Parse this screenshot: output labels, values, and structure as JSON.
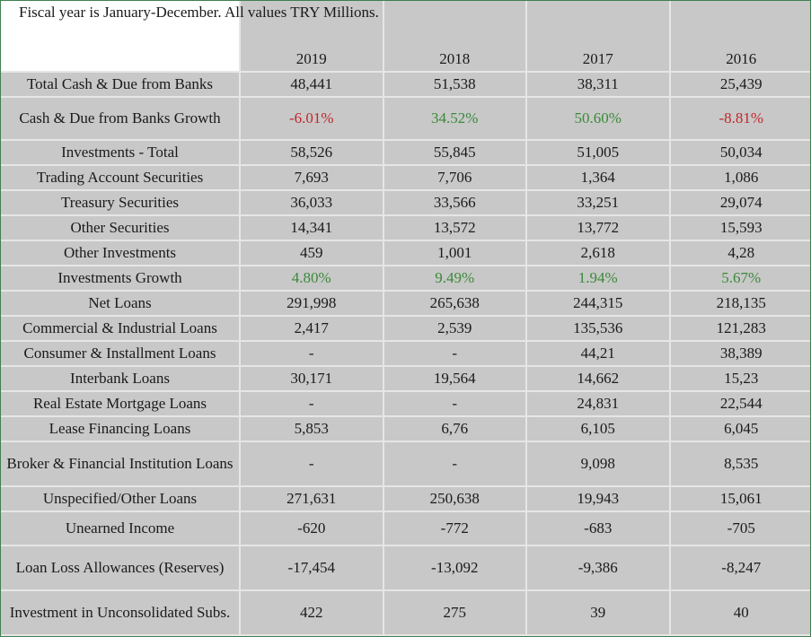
{
  "header": {
    "caption": "Fiscal year is January-December. All values TRY Millions.",
    "years": [
      "2019",
      "2018",
      "2017",
      "2016"
    ]
  },
  "rows": [
    {
      "label": "Total Cash & Due from Banks",
      "values": [
        "48,441",
        "51,538",
        "38,311",
        "25,439"
      ]
    },
    {
      "label": "Cash & Due from Banks Growth",
      "values": [
        "-6.01%",
        "34.52%",
        "50.60%",
        "-8.81%"
      ]
    },
    {
      "label": "Investments - Total",
      "values": [
        "58,526",
        "55,845",
        "51,005",
        "50,034"
      ]
    },
    {
      "label": "Trading Account Securities",
      "values": [
        "7,693",
        "7,706",
        "1,364",
        "1,086"
      ]
    },
    {
      "label": "Treasury Securities",
      "values": [
        "36,033",
        "33,566",
        "33,251",
        "29,074"
      ]
    },
    {
      "label": "Other Securities",
      "values": [
        "14,341",
        "13,572",
        "13,772",
        "15,593"
      ]
    },
    {
      "label": "Other Investments",
      "values": [
        "459",
        "1,001",
        "2,618",
        "4,28"
      ]
    },
    {
      "label": "Investments Growth",
      "values": [
        "4.80%",
        "9.49%",
        "1.94%",
        "5.67%"
      ]
    },
    {
      "label": "Net Loans",
      "values": [
        "291,998",
        "265,638",
        "244,315",
        "218,135"
      ]
    },
    {
      "label": "Commercial & Industrial Loans",
      "values": [
        "2,417",
        "2,539",
        "135,536",
        "121,283"
      ]
    },
    {
      "label": "Consumer & Installment Loans",
      "values": [
        "-",
        "-",
        "44,21",
        "38,389"
      ]
    },
    {
      "label": "Interbank Loans",
      "values": [
        "30,171",
        "19,564",
        "14,662",
        "15,23"
      ]
    },
    {
      "label": "Real Estate Mortgage Loans",
      "values": [
        "-",
        "-",
        "24,831",
        "22,544"
      ]
    },
    {
      "label": "Lease Financing Loans",
      "values": [
        "5,853",
        "6,76",
        "6,105",
        "6,045"
      ]
    },
    {
      "label": "Broker & Financial Institution Loans",
      "values": [
        "-",
        "-",
        "9,098",
        "8,535"
      ]
    },
    {
      "label": "Unspecified/Other Loans",
      "values": [
        "271,631",
        "250,638",
        "19,943",
        "15,061"
      ]
    },
    {
      "label": "Unearned Income",
      "values": [
        "-620",
        "-772",
        "-683",
        "-705"
      ]
    },
    {
      "label": "Loan Loss Allowances (Reserves)",
      "values": [
        "-17,454",
        "-13,092",
        "-9,386",
        "-8,247"
      ]
    },
    {
      "label": "Investment in Unconsolidated Subs.",
      "values": [
        "422",
        "275",
        "39",
        "40"
      ]
    }
  ],
  "colors": {
    "negative": "#c0282a",
    "positive": "#3a8a3a",
    "cell_bg": "#c8c8c8",
    "grid": "#e6e6e6"
  }
}
